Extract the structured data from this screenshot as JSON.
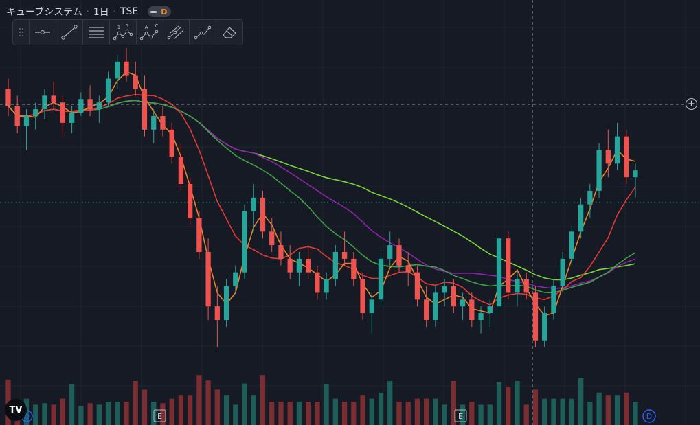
{
  "header": {
    "symbol": "キューブシステム",
    "interval": "1日",
    "exchange": "TSE",
    "badge": "D"
  },
  "toolbar": {
    "tools": [
      "horizontal-line-icon",
      "trend-line-icon",
      "fib-levels-icon",
      "xabcd-pattern-icon",
      "abcd-pattern-icon",
      "pitchfork-icon",
      "path-icon",
      "eraser-icon"
    ],
    "pattern_labels_1": [
      "1",
      "5"
    ],
    "pattern_labels_2": [
      "A",
      "C"
    ]
  },
  "colors": {
    "background": "#151a24",
    "up": "#26a69a",
    "down": "#ef5350",
    "ma_short": "#e8852b",
    "ma_mid": "#e53935",
    "ma_purple": "#8e24aa",
    "ma_dark_green": "#43a047",
    "ma_long": "#7cd63a"
  },
  "chart_data": {
    "type": "candlestick",
    "price_range": [
      0,
      100
    ],
    "candles": [
      {
        "o": 88,
        "h": 91,
        "l": 80,
        "c": 83
      },
      {
        "o": 83,
        "h": 86,
        "l": 75,
        "c": 77
      },
      {
        "o": 77,
        "h": 82,
        "l": 70,
        "c": 80
      },
      {
        "o": 80,
        "h": 84,
        "l": 76,
        "c": 82
      },
      {
        "o": 82,
        "h": 88,
        "l": 79,
        "c": 86
      },
      {
        "o": 86,
        "h": 90,
        "l": 82,
        "c": 84
      },
      {
        "o": 84,
        "h": 86,
        "l": 74,
        "c": 78
      },
      {
        "o": 78,
        "h": 83,
        "l": 75,
        "c": 81
      },
      {
        "o": 81,
        "h": 87,
        "l": 80,
        "c": 85
      },
      {
        "o": 85,
        "h": 89,
        "l": 80,
        "c": 82
      },
      {
        "o": 82,
        "h": 86,
        "l": 78,
        "c": 84
      },
      {
        "o": 84,
        "h": 93,
        "l": 83,
        "c": 91
      },
      {
        "o": 91,
        "h": 98,
        "l": 88,
        "c": 96
      },
      {
        "o": 96,
        "h": 100,
        "l": 90,
        "c": 92
      },
      {
        "o": 92,
        "h": 96,
        "l": 86,
        "c": 88
      },
      {
        "o": 88,
        "h": 92,
        "l": 74,
        "c": 76
      },
      {
        "o": 76,
        "h": 82,
        "l": 72,
        "c": 80
      },
      {
        "o": 80,
        "h": 83,
        "l": 74,
        "c": 76
      },
      {
        "o": 76,
        "h": 78,
        "l": 66,
        "c": 68
      },
      {
        "o": 68,
        "h": 72,
        "l": 58,
        "c": 60
      },
      {
        "o": 60,
        "h": 62,
        "l": 48,
        "c": 50
      },
      {
        "o": 50,
        "h": 52,
        "l": 38,
        "c": 40
      },
      {
        "o": 40,
        "h": 44,
        "l": 20,
        "c": 24
      },
      {
        "o": 24,
        "h": 30,
        "l": 12,
        "c": 20
      },
      {
        "o": 20,
        "h": 32,
        "l": 18,
        "c": 30
      },
      {
        "o": 30,
        "h": 36,
        "l": 28,
        "c": 34
      },
      {
        "o": 34,
        "h": 54,
        "l": 32,
        "c": 52
      },
      {
        "o": 52,
        "h": 60,
        "l": 46,
        "c": 56
      },
      {
        "o": 56,
        "h": 58,
        "l": 44,
        "c": 46
      },
      {
        "o": 46,
        "h": 50,
        "l": 40,
        "c": 42
      },
      {
        "o": 42,
        "h": 46,
        "l": 36,
        "c": 38
      },
      {
        "o": 38,
        "h": 42,
        "l": 32,
        "c": 34
      },
      {
        "o": 34,
        "h": 40,
        "l": 30,
        "c": 38
      },
      {
        "o": 38,
        "h": 42,
        "l": 32,
        "c": 34
      },
      {
        "o": 34,
        "h": 36,
        "l": 26,
        "c": 28
      },
      {
        "o": 28,
        "h": 34,
        "l": 26,
        "c": 32
      },
      {
        "o": 32,
        "h": 42,
        "l": 30,
        "c": 40
      },
      {
        "o": 40,
        "h": 46,
        "l": 36,
        "c": 38
      },
      {
        "o": 38,
        "h": 40,
        "l": 30,
        "c": 32
      },
      {
        "o": 32,
        "h": 34,
        "l": 20,
        "c": 22
      },
      {
        "o": 22,
        "h": 28,
        "l": 16,
        "c": 26
      },
      {
        "o": 26,
        "h": 40,
        "l": 24,
        "c": 38
      },
      {
        "o": 38,
        "h": 46,
        "l": 36,
        "c": 42
      },
      {
        "o": 42,
        "h": 44,
        "l": 34,
        "c": 36
      },
      {
        "o": 36,
        "h": 40,
        "l": 30,
        "c": 34
      },
      {
        "o": 34,
        "h": 36,
        "l": 24,
        "c": 26
      },
      {
        "o": 26,
        "h": 30,
        "l": 18,
        "c": 20
      },
      {
        "o": 20,
        "h": 30,
        "l": 18,
        "c": 28
      },
      {
        "o": 28,
        "h": 32,
        "l": 24,
        "c": 30
      },
      {
        "o": 30,
        "h": 32,
        "l": 22,
        "c": 24
      },
      {
        "o": 24,
        "h": 28,
        "l": 20,
        "c": 26
      },
      {
        "o": 26,
        "h": 28,
        "l": 18,
        "c": 20
      },
      {
        "o": 20,
        "h": 24,
        "l": 16,
        "c": 22
      },
      {
        "o": 22,
        "h": 26,
        "l": 18,
        "c": 24
      },
      {
        "o": 24,
        "h": 45,
        "l": 22,
        "c": 44
      },
      {
        "o": 44,
        "h": 46,
        "l": 26,
        "c": 28
      },
      {
        "o": 28,
        "h": 34,
        "l": 24,
        "c": 32
      },
      {
        "o": 32,
        "h": 34,
        "l": 26,
        "c": 28
      },
      {
        "o": 28,
        "h": 30,
        "l": 12,
        "c": 14
      },
      {
        "o": 14,
        "h": 24,
        "l": 12,
        "c": 22
      },
      {
        "o": 22,
        "h": 32,
        "l": 20,
        "c": 30
      },
      {
        "o": 30,
        "h": 40,
        "l": 28,
        "c": 38
      },
      {
        "o": 38,
        "h": 48,
        "l": 36,
        "c": 46
      },
      {
        "o": 46,
        "h": 56,
        "l": 44,
        "c": 54
      },
      {
        "o": 54,
        "h": 60,
        "l": 50,
        "c": 58
      },
      {
        "o": 58,
        "h": 72,
        "l": 56,
        "c": 70
      },
      {
        "o": 70,
        "h": 76,
        "l": 62,
        "c": 66
      },
      {
        "o": 66,
        "h": 78,
        "l": 64,
        "c": 74
      },
      {
        "o": 74,
        "h": 76,
        "l": 60,
        "c": 62
      },
      {
        "o": 62,
        "h": 66,
        "l": 56,
        "c": 64
      }
    ]
  }
}
